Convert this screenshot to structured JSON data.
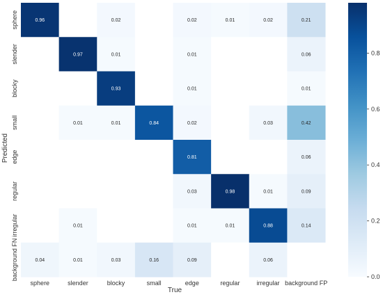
{
  "chart_data": {
    "type": "heatmap",
    "title": "",
    "xlabel": "True",
    "ylabel": "Predicted",
    "x_categories": [
      "sphere",
      "slender",
      "blocky",
      "small",
      "edge",
      "regular",
      "irregular",
      "background FP"
    ],
    "y_categories": [
      "sphere",
      "slender",
      "blocky",
      "small",
      "edge",
      "regular",
      "irregular",
      "background FN"
    ],
    "values": [
      [
        0.96,
        null,
        0.02,
        null,
        0.02,
        0.01,
        0.02,
        0.21
      ],
      [
        null,
        0.97,
        0.01,
        null,
        0.01,
        null,
        null,
        0.06
      ],
      [
        null,
        null,
        0.93,
        null,
        0.01,
        null,
        null,
        0.01
      ],
      [
        null,
        0.01,
        0.01,
        0.84,
        0.02,
        null,
        0.03,
        0.42
      ],
      [
        null,
        null,
        null,
        null,
        0.81,
        null,
        null,
        0.06
      ],
      [
        null,
        null,
        null,
        null,
        0.03,
        0.98,
        0.01,
        0.09
      ],
      [
        null,
        0.01,
        null,
        null,
        0.01,
        0.01,
        0.88,
        0.14
      ],
      [
        0.04,
        0.01,
        0.03,
        0.16,
        0.09,
        null,
        0.06,
        null
      ]
    ],
    "value_labels": [
      [
        "0.96",
        "",
        "0.02",
        "",
        "0.02",
        "0.01",
        "0.02",
        "0.21"
      ],
      [
        "",
        "0.97",
        "0.01",
        "",
        "0.01",
        "",
        "",
        "0.06"
      ],
      [
        "",
        "",
        "0.93",
        "",
        "0.01",
        "",
        "",
        "0.01"
      ],
      [
        "",
        "0.01",
        "0.01",
        "0.84",
        "0.02",
        "",
        "0.03",
        "0.42"
      ],
      [
        "",
        "",
        "",
        "",
        "0.81",
        "",
        "",
        "0.06"
      ],
      [
        "",
        "",
        "",
        "",
        "0.03",
        "0.98",
        "0.01",
        "0.09"
      ],
      [
        "",
        "0.01",
        "",
        "",
        "0.01",
        "0.01",
        "0.88",
        "0.14"
      ],
      [
        "0.04",
        "0.01",
        "0.03",
        "0.16",
        "0.09",
        "",
        "0.06",
        ""
      ]
    ],
    "colorbar": {
      "range": [
        0,
        0.98
      ],
      "ticks": [
        0.0,
        0.2,
        0.4,
        0.6,
        0.8
      ],
      "tick_labels": [
        "0.0",
        "0.2",
        "0.4",
        "0.6",
        "0.8"
      ]
    },
    "colormap": [
      "#f7fbff",
      "#deebf7",
      "#c6dbef",
      "#9ecae1",
      "#6baed6",
      "#4292c6",
      "#2171b5",
      "#08519c",
      "#08306b"
    ]
  }
}
